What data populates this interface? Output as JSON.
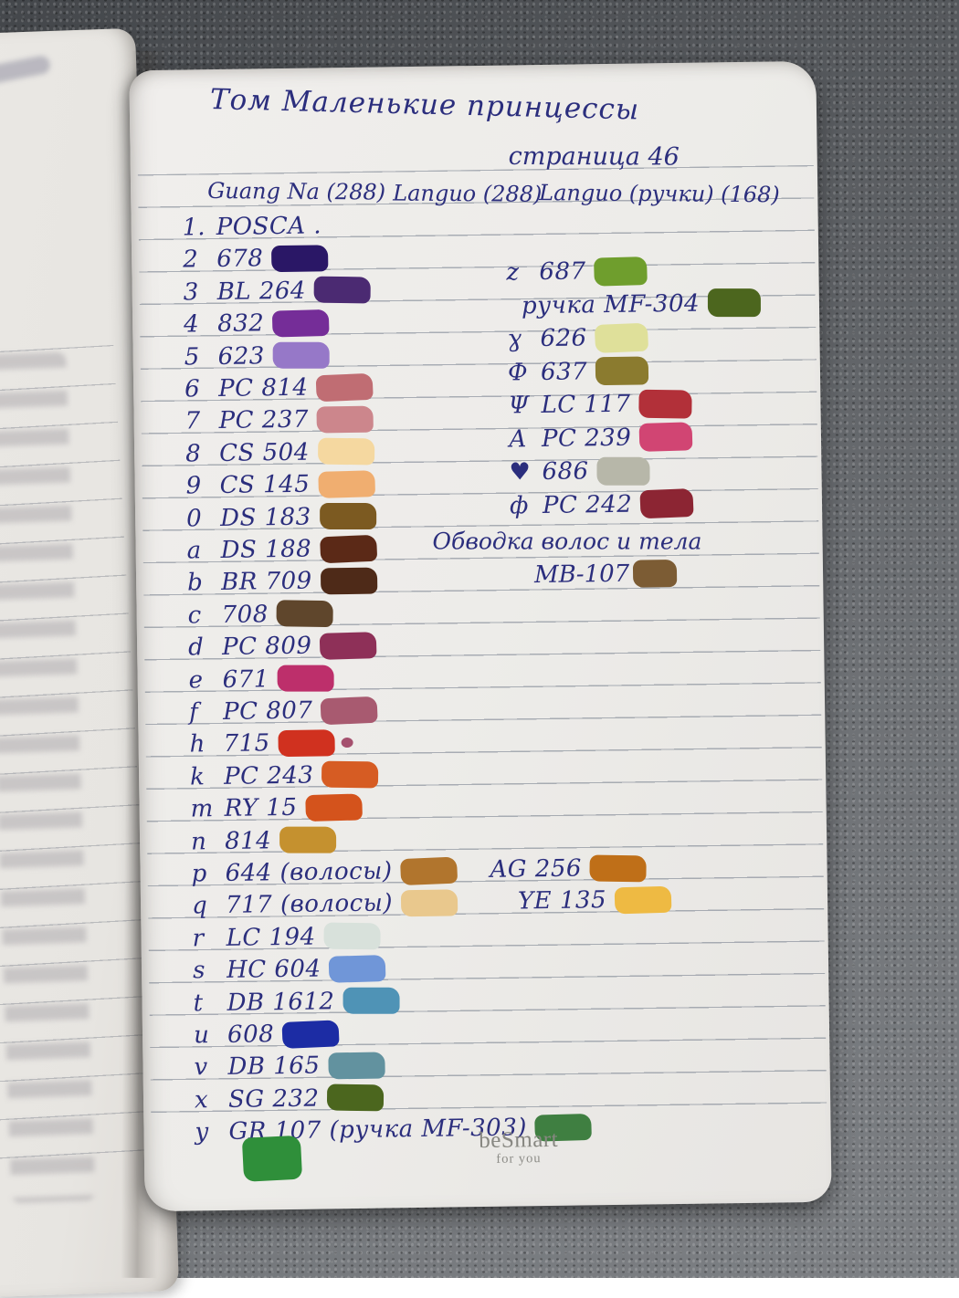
{
  "colors": {
    "ink": "#2b2e7d",
    "paper": "#edecE9",
    "rule_line": "#6a7282",
    "fabric": "#63666a",
    "logo_gray": "#878781"
  },
  "header": {
    "title": "Том Маленькие принцессы",
    "page_label": "страница 46",
    "brands": [
      "Guang Na (288)",
      "Languo (288)",
      "Languo (ручки) (168)"
    ]
  },
  "left_list": [
    {
      "index": "1.",
      "code": "POSCA .",
      "swatch": null
    },
    {
      "index": "2",
      "code": "678",
      "swatch": "#2a1766"
    },
    {
      "index": "3",
      "code": "BL 264",
      "swatch": "#4b2a72"
    },
    {
      "index": "4",
      "code": "832",
      "swatch": "#752d98"
    },
    {
      "index": "5",
      "code": "623",
      "swatch": "#9678c8"
    },
    {
      "index": "6",
      "code": "PC 814",
      "swatch": "#c06d73"
    },
    {
      "index": "7",
      "code": "PC 237",
      "swatch": "#cc868c"
    },
    {
      "index": "8",
      "code": "CS 504",
      "swatch": "#f5d8a0"
    },
    {
      "index": "9",
      "code": "CS 145",
      "swatch": "#f0ae70"
    },
    {
      "index": "0",
      "code": "DS 183",
      "swatch": "#7c5a21"
    },
    {
      "index": "a",
      "code": "DS 188",
      "swatch": "#5b2917"
    },
    {
      "index": "b",
      "code": "BR 709",
      "swatch": "#4e2a18"
    },
    {
      "index": "c",
      "code": "708",
      "swatch": "#5f462c"
    },
    {
      "index": "d",
      "code": "PC 809",
      "swatch": "#8e3058"
    },
    {
      "index": "e",
      "code": "671",
      "swatch": "#bd2f6b"
    },
    {
      "index": "f",
      "code": "PC 807",
      "swatch": "#a85a70"
    },
    {
      "index": "h",
      "code": "715",
      "swatch": "#d0311f",
      "dot": "#a5506e"
    },
    {
      "index": "k",
      "code": "PC 243",
      "swatch": "#d65c23"
    },
    {
      "index": "m",
      "code": "RY 15",
      "swatch": "#d4531c"
    },
    {
      "index": "n",
      "code": "814",
      "swatch": "#c5912f"
    },
    {
      "index": "p",
      "code": "644 (волосы)",
      "swatch": "#b1752d",
      "extra_code": "AG 256",
      "extra_swatch": "#bf6f18",
      "gap": 36
    },
    {
      "index": "q",
      "code": "717 (волосы)",
      "swatch": "#e9c88d",
      "extra_code": "YE 135",
      "extra_swatch": "#eeba43",
      "gap": 66
    },
    {
      "index": "r",
      "code": "LC 194",
      "swatch": "#d8e1db"
    },
    {
      "index": "s",
      "code": "HC 604",
      "swatch": "#7096d8"
    },
    {
      "index": "t",
      "code": "DB 1612",
      "swatch": "#4f93b6"
    },
    {
      "index": "u",
      "code": "608",
      "swatch": "#1c2ca4"
    },
    {
      "index": "v",
      "code": "DB 165",
      "swatch": "#62929f"
    },
    {
      "index": "x",
      "code": "SG 232",
      "swatch": "#4b661e"
    },
    {
      "index": "y",
      "code": "GR 107 (ручка MF-303)",
      "swatch": "#3f7f41"
    }
  ],
  "right_list": [
    {
      "prefix": "z",
      "code": "687",
      "swatch": "#6f9e2d"
    },
    {
      "prefix": "",
      "code": "ручка MF-304",
      "swatch": "#4c661e"
    },
    {
      "prefix": "ɣ",
      "code": "626",
      "swatch": "#dfe09a"
    },
    {
      "prefix": "Ф",
      "code": "637",
      "swatch": "#8b7b2f"
    },
    {
      "prefix": "Ψ",
      "code": "LC 117",
      "swatch": "#b23039"
    },
    {
      "prefix": "А",
      "code": "PC 239",
      "swatch": "#d14573"
    },
    {
      "prefix": "♥",
      "code": "686",
      "swatch": "#b7b7a9"
    },
    {
      "prefix": "ф",
      "code": "PC 242",
      "swatch": "#8c2533"
    }
  ],
  "note": {
    "title": "Обводка волос и тела",
    "code": "МВ-107",
    "swatch": "#7c5c34"
  },
  "footer": {
    "brand": "beSmart",
    "tagline": "for you"
  },
  "misc_swatch": {
    "color": "#2f8f3a"
  }
}
